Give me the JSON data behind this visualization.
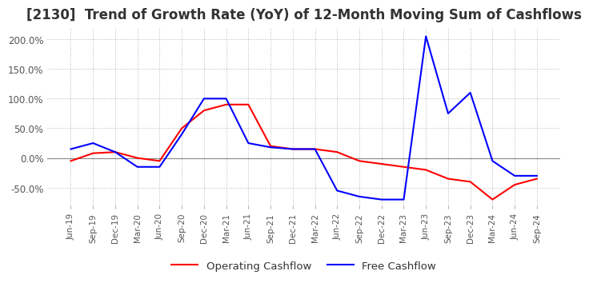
{
  "title": "[2130]  Trend of Growth Rate (YoY) of 12-Month Moving Sum of Cashflows",
  "title_fontsize": 12,
  "ylim": [
    -80,
    220
  ],
  "yticks": [
    -50,
    0,
    50,
    100,
    150,
    200
  ],
  "background_color": "#ffffff",
  "grid_color": "#aaaaaa",
  "operating_color": "#ff0000",
  "free_color": "#0000ff",
  "x_labels": [
    "Jun-19",
    "Sep-19",
    "Dec-19",
    "Mar-20",
    "Jun-20",
    "Sep-20",
    "Dec-20",
    "Mar-21",
    "Jun-21",
    "Sep-21",
    "Dec-21",
    "Mar-22",
    "Jun-22",
    "Sep-22",
    "Dec-22",
    "Mar-23",
    "Jun-23",
    "Sep-23",
    "Dec-23",
    "Mar-24",
    "Jun-24",
    "Sep-24"
  ],
  "operating_cashflow": [
    -5,
    8,
    10,
    0,
    -5,
    50,
    80,
    90,
    90,
    20,
    15,
    15,
    10,
    -5,
    -10,
    -15,
    -20,
    -35,
    -40,
    -70,
    -45,
    -35
  ],
  "free_cashflow": [
    15,
    25,
    10,
    -15,
    -15,
    40,
    100,
    100,
    25,
    18,
    15,
    15,
    -55,
    -65,
    -70,
    -70,
    205,
    75,
    110,
    -5,
    -30,
    -30
  ]
}
